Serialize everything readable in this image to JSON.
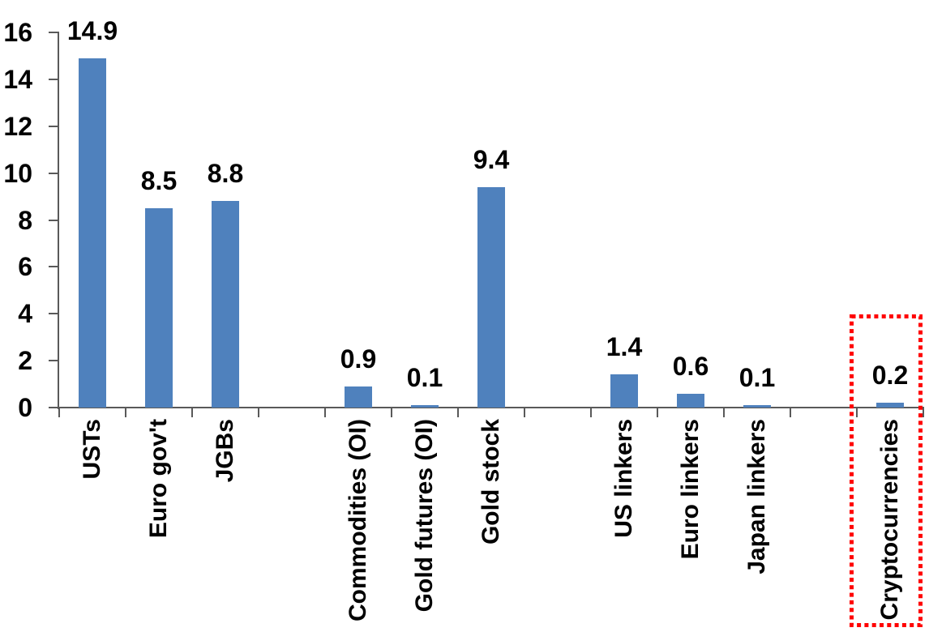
{
  "chart_data": {
    "type": "bar",
    "title": "",
    "xlabel": "",
    "ylabel": "",
    "categories": [
      "USTs",
      "Euro gov't",
      "JGBs",
      "Commodities (OI)",
      "Gold futures (OI)",
      "Gold stock",
      "US linkers",
      "Euro linkers",
      "Japan linkers",
      "Cryptocurrencies"
    ],
    "values": [
      14.9,
      8.5,
      8.8,
      0.9,
      0.1,
      9.4,
      1.4,
      0.6,
      0.1,
      0.2
    ],
    "data_labels": [
      "14.9",
      "8.5",
      "8.8",
      "0.9",
      "0.1",
      "9.4",
      "1.4",
      "0.6",
      "0.1",
      "0.2"
    ],
    "groups": [
      [
        "USTs",
        "Euro gov't",
        "JGBs"
      ],
      [
        "Commodities (OI)",
        "Gold futures (OI)",
        "Gold stock"
      ],
      [
        "US linkers",
        "Euro linkers",
        "Japan linkers"
      ],
      [
        "Cryptocurrencies"
      ]
    ],
    "slot_indices": [
      0,
      1,
      2,
      4,
      5,
      6,
      8,
      9,
      10,
      12
    ],
    "total_slots": 13,
    "ylim": [
      0,
      16
    ],
    "yticks": [
      0,
      2,
      4,
      6,
      8,
      10,
      12,
      14,
      16
    ],
    "grid": false,
    "legend": false,
    "bar_color": "#4F81BD",
    "axis_color": "#595959",
    "text_color": "#000000",
    "highlight": {
      "category": "Cryptocurrencies",
      "shape": "dotted-rectangle",
      "color": "#FF0000"
    }
  }
}
